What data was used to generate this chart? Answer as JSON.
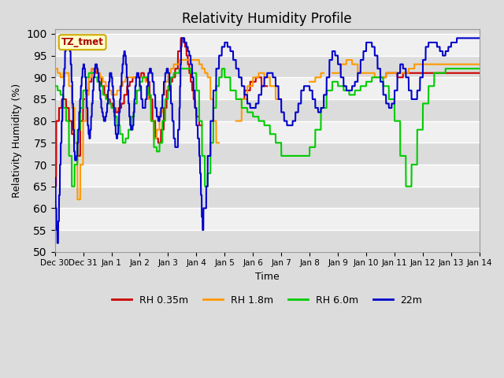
{
  "title": "Relativity Humidity Profile",
  "xlabel": "Time",
  "ylabel": "Relativity Humidity (%)",
  "ylim": [
    50,
    101
  ],
  "yticks": [
    50,
    55,
    60,
    65,
    70,
    75,
    80,
    85,
    90,
    95,
    100
  ],
  "bg_color": "#dcdcdc",
  "plot_bg_color": "#dcdcdc",
  "band_colors": [
    "#dcdcdc",
    "#f0f0f0"
  ],
  "legend_label": "TZ_tmet",
  "legend_box_color": "#ffffcc",
  "legend_box_edge": "#ccaa00",
  "legend_text_color": "#aa0000",
  "series": {
    "RH 0.35m": {
      "color": "#cc0000",
      "lw": 1.5
    },
    "RH 1.8m": {
      "color": "#ff9900",
      "lw": 1.5
    },
    "RH 6.0m": {
      "color": "#00cc00",
      "lw": 1.5
    },
    "22m": {
      "color": "#0000cc",
      "lw": 1.5
    }
  },
  "xtick_labels": [
    "Dec 30",
    "Dec 31",
    "Jan 1",
    "Jan 2",
    "Jan 3",
    "Jan 4",
    "Jan 5",
    "Jan 6",
    "Jan 7",
    "Jan 8",
    "Jan 9",
    "Jan 10",
    "Jan 11",
    "Jan 12",
    "Jan 13",
    "Jan 14"
  ],
  "xtick_positions": [
    0,
    1,
    2,
    3,
    4,
    5,
    6,
    7,
    8,
    9,
    10,
    11,
    12,
    13,
    14,
    15
  ]
}
